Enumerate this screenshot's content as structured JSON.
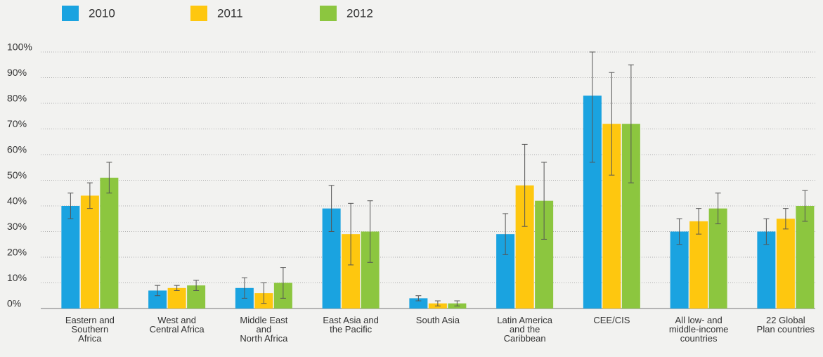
{
  "chart_data": {
    "type": "bar",
    "categories": [
      "Eastern and\nSouthern\nAfrica",
      "West and\nCentral Africa",
      "Middle East\nand\nNorth Africa",
      "East Asia and\nthe Pacific",
      "South Asia",
      "Latin America\nand the\nCaribbean",
      "CEE/CIS",
      "All low- and\nmiddle-income\ncountries",
      "22 Global\nPlan countries"
    ],
    "series": [
      {
        "name": "2010",
        "color": "#1aa3e0",
        "values": [
          40,
          7,
          8,
          39,
          4,
          29,
          83,
          30,
          30
        ],
        "errors": [
          5,
          2,
          4,
          9,
          1,
          8,
          26,
          5,
          5
        ]
      },
      {
        "name": "2011",
        "color": "#fec70f",
        "values": [
          44,
          8,
          6,
          29,
          2,
          48,
          72,
          34,
          35
        ],
        "errors": [
          5,
          1,
          4,
          12,
          1,
          16,
          20,
          5,
          4
        ]
      },
      {
        "name": "2012",
        "color": "#8cc63f",
        "values": [
          51,
          9,
          10,
          30,
          2,
          42,
          72,
          39,
          40
        ],
        "errors": [
          6,
          2,
          6,
          12,
          1,
          15,
          23,
          6,
          6
        ]
      }
    ],
    "ylim": [
      0,
      100
    ],
    "yticks": [
      {
        "value": 0,
        "label": "0%"
      },
      {
        "value": 10,
        "label": "10%"
      },
      {
        "value": 20,
        "label": "20%"
      },
      {
        "value": 30,
        "label": "30%"
      },
      {
        "value": 40,
        "label": "40%"
      },
      {
        "value": 50,
        "label": "50%"
      },
      {
        "value": 60,
        "label": "60%"
      },
      {
        "value": 70,
        "label": "70%"
      },
      {
        "value": 80,
        "label": "80%"
      },
      {
        "value": 90,
        "label": "90%"
      },
      {
        "value": 100,
        "label": "100%"
      }
    ],
    "grid": true,
    "legend": "top-left"
  }
}
